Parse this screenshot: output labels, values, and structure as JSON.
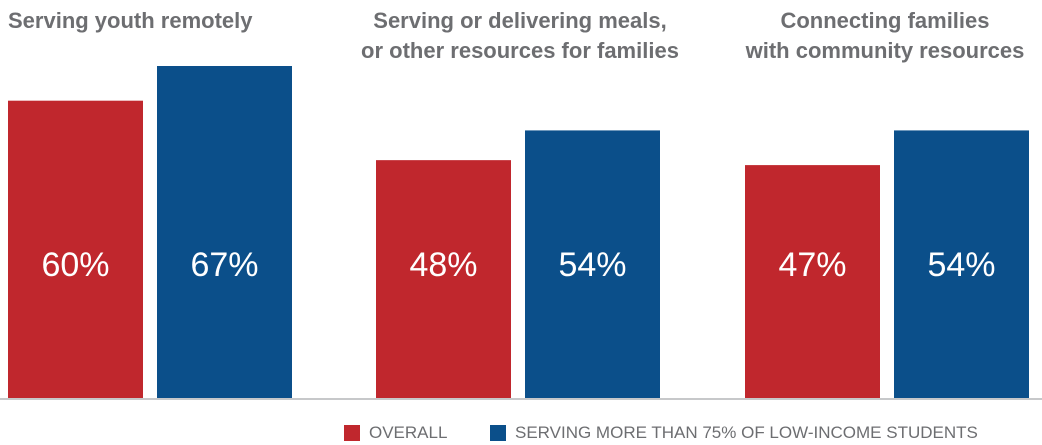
{
  "chart_data": {
    "type": "bar",
    "categories": [
      "Serving youth remotely",
      "Serving or delivering meals,\nor other resources for families",
      "Connecting families\nwith community resources"
    ],
    "series": [
      {
        "name": "OVERALL",
        "color": "#c0272d",
        "values": [
          60,
          48,
          47
        ],
        "labels": [
          "60%",
          "48%",
          "47%"
        ]
      },
      {
        "name": "SERVING MORE THAN 75% OF LOW-INCOME STUDENTS",
        "color": "#0b4f8a",
        "values": [
          67,
          54,
          54
        ],
        "labels": [
          "67%",
          "54%",
          "54%"
        ]
      }
    ],
    "ylim": [
      0,
      70
    ],
    "grid": false,
    "legend": "bottom-right",
    "axis_color": "#c7c8ca",
    "title_color": "#6d6e71",
    "label_color": "#ffffff"
  }
}
